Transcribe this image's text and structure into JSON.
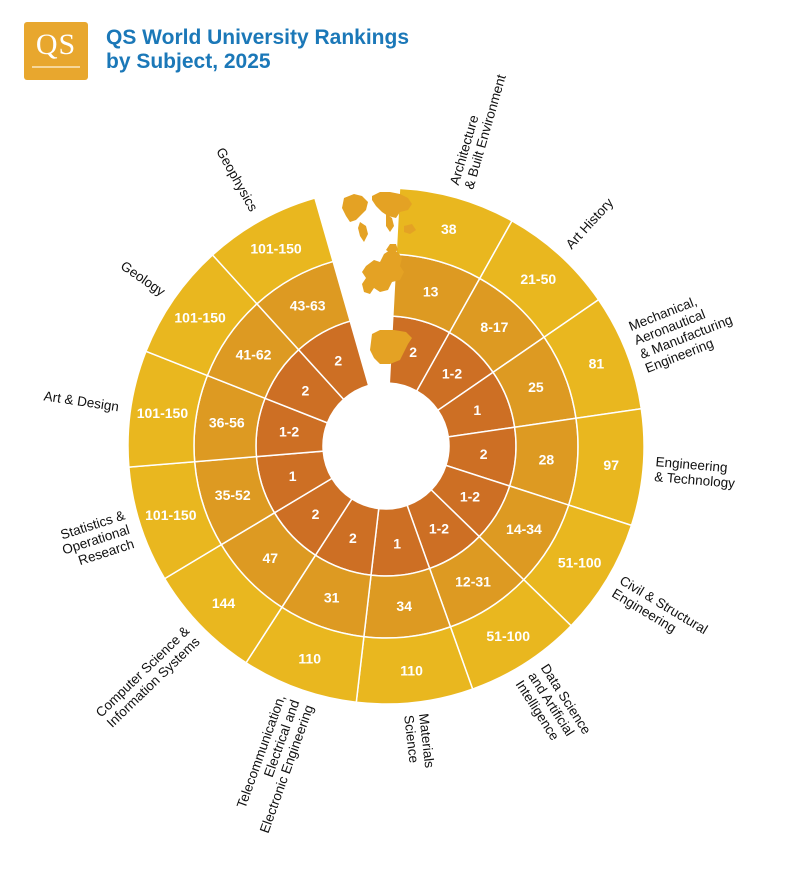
{
  "logo": {
    "text": "QS"
  },
  "header": {
    "title_line1": "QS World University Rankings",
    "title_line2": "by Subject, 2025"
  },
  "colors": {
    "outer": "#e9b71f",
    "middle": "#dd9a22",
    "inner": "#cd6f24",
    "title": "#1b78b8",
    "map": "#e4a224"
  },
  "icons": [
    "world-map-icon",
    "europe-map-icon",
    "spain-map-icon"
  ],
  "chart_data": {
    "type": "radial-rings",
    "rings": [
      "world",
      "europe",
      "spain"
    ],
    "segments": [
      {
        "label": [
          "Architecture",
          "& Built Environment"
        ],
        "values": [
          "38",
          "13",
          "2"
        ]
      },
      {
        "label": [
          "Art History"
        ],
        "values": [
          "21-50",
          "8-17",
          "1-2"
        ]
      },
      {
        "label": [
          "Mechanical,",
          "Aeronautical",
          "& Manufacturing",
          "Engineering"
        ],
        "values": [
          "81",
          "25",
          "1"
        ]
      },
      {
        "label": [
          "Engineering",
          "& Technology"
        ],
        "values": [
          "97",
          "28",
          "2"
        ]
      },
      {
        "label": [
          "Civil & Structural",
          "Engineering"
        ],
        "values": [
          "51-100",
          "14-34",
          "1-2"
        ]
      },
      {
        "label": [
          "Data Science",
          "and Artificial",
          "Intelligence"
        ],
        "values": [
          "51-100",
          "12-31",
          "1-2"
        ]
      },
      {
        "label": [
          "Materials",
          "Science"
        ],
        "values": [
          "110",
          "34",
          "1"
        ]
      },
      {
        "label": [
          "Telecommunication,",
          "Electrical and",
          "Electronic Engineering"
        ],
        "values": [
          "110",
          "31",
          "2"
        ]
      },
      {
        "label": [
          "Computer Science &",
          "Information Systems"
        ],
        "values": [
          "144",
          "47",
          "2"
        ]
      },
      {
        "label": [
          "Statistics &",
          "Operational",
          "Research"
        ],
        "values": [
          "101-150",
          "35-52",
          "1"
        ]
      },
      {
        "label": [
          "Art & Design"
        ],
        "values": [
          "101-150",
          "36-56",
          "1-2"
        ]
      },
      {
        "label": [
          "Geology"
        ],
        "values": [
          "101-150",
          "41-62",
          "2"
        ]
      },
      {
        "label": [
          "Geophysics"
        ],
        "values": [
          "101-150",
          "43-63",
          "2"
        ]
      }
    ]
  }
}
